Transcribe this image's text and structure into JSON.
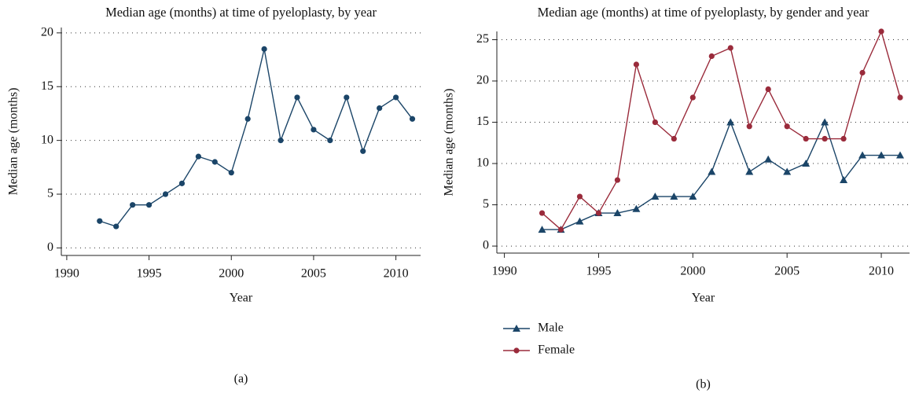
{
  "chart_data": [
    {
      "type": "line",
      "title": "Median age (months) at time of pyeloplasty, by year",
      "xlabel": "Year",
      "ylabel": "Median age (months)",
      "caption": "(a)",
      "x": [
        1992,
        1993,
        1994,
        1995,
        1996,
        1997,
        1998,
        1999,
        2000,
        2001,
        2002,
        2003,
        2004,
        2005,
        2006,
        2007,
        2008,
        2009,
        2010,
        2011
      ],
      "values": [
        2.5,
        2,
        4,
        4,
        5,
        6,
        8.5,
        8,
        7,
        12,
        18.5,
        10,
        14,
        11,
        10,
        14,
        9,
        13,
        14,
        12
      ],
      "color": "#1b4568",
      "marker": "circle",
      "xlim": [
        1989.67,
        2011.5
      ],
      "xticks": [
        1990,
        1995,
        2000,
        2005,
        2010
      ],
      "ylim": [
        -0.7,
        20.5
      ],
      "yticks": [
        0,
        5,
        10,
        15,
        20
      ],
      "grid": true
    },
    {
      "type": "line",
      "title": "Median age (months) at time of pyeloplasty, by gender and year",
      "xlabel": "Year",
      "ylabel": "Median age (months)",
      "caption": "(b)",
      "x": [
        1992,
        1993,
        1994,
        1995,
        1996,
        1997,
        1998,
        1999,
        2000,
        2001,
        2002,
        2003,
        2004,
        2005,
        2006,
        2007,
        2008,
        2009,
        2010,
        2011
      ],
      "series": [
        {
          "name": "Male",
          "color": "#1b4568",
          "marker": "triangle",
          "values": [
            2,
            2,
            3,
            4,
            4,
            4.5,
            6,
            6,
            6,
            9,
            15,
            9,
            10.5,
            9,
            10,
            15,
            8,
            11,
            11,
            11
          ]
        },
        {
          "name": "Female",
          "color": "#9a2b3b",
          "marker": "circle",
          "values": [
            4,
            2,
            6,
            4,
            8,
            22,
            15,
            13,
            18,
            23,
            24,
            14.5,
            19,
            14.5,
            13,
            13,
            13,
            21,
            26,
            18
          ]
        }
      ],
      "xlim": [
        1989.6,
        2011.5
      ],
      "xticks": [
        1990,
        1995,
        2000,
        2005,
        2010
      ],
      "ylim": [
        -0.85,
        26
      ],
      "yticks": [
        0,
        5,
        10,
        15,
        20,
        25
      ],
      "grid": true,
      "legend": "bottom-left"
    }
  ]
}
